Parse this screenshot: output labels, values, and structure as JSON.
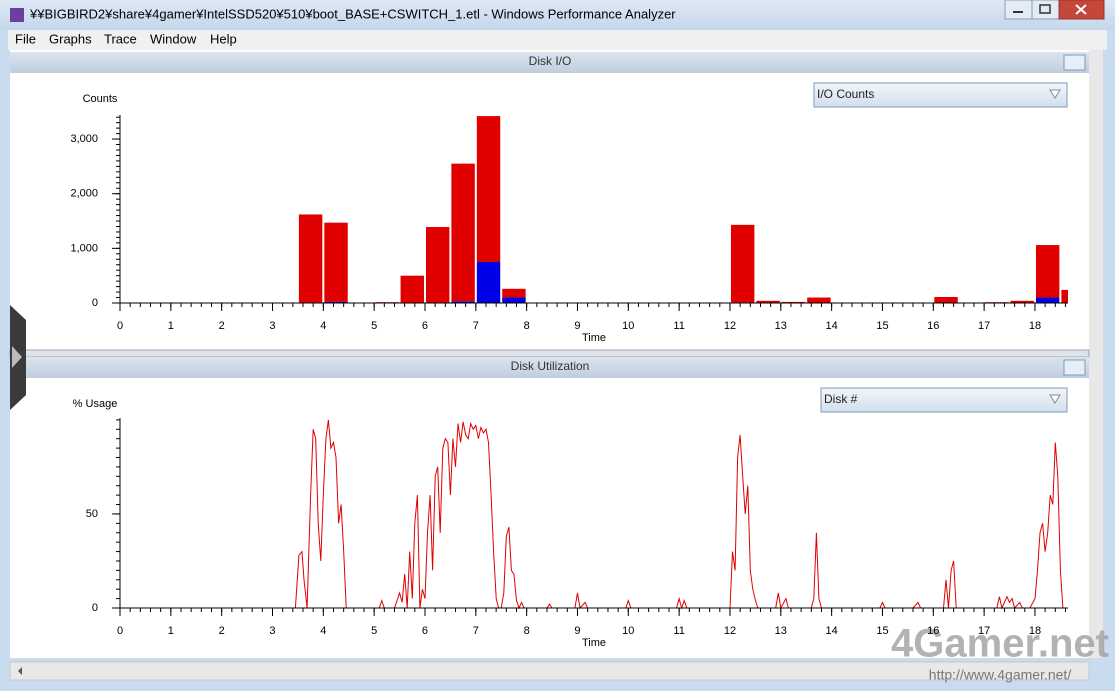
{
  "window": {
    "title": "¥¥BIGBIRD2¥share¥4gamer¥IntelSSD520¥510¥boot_BASE+CSWITCH_1.etl - Windows Performance Analyzer"
  },
  "menu": [
    "File",
    "Graphs",
    "Trace",
    "Window",
    "Help"
  ],
  "watermark": {
    "logo": "4Gamer.net",
    "url": "http://www.4gamer.net/"
  },
  "chart_data": [
    {
      "type": "histogram",
      "panel_title": "Disk I/O",
      "dropdown": "I/O Counts",
      "ylabel": "Counts",
      "xlabel": "Time",
      "bins": [
        0,
        0.5,
        1,
        1.5,
        2,
        2.5,
        3,
        3.5,
        4,
        4.5,
        5,
        5.5,
        6,
        6.5,
        7,
        7.5,
        8,
        8.5,
        9,
        9.5,
        10,
        10.5,
        11,
        11.5,
        12,
        12.5,
        13,
        13.5,
        14,
        14.5,
        15,
        15.5,
        16,
        16.5,
        17,
        17.5,
        18,
        18.5,
        19
      ],
      "series": [
        {
          "color": "#0000e6",
          "values": [
            0,
            0,
            0,
            0,
            0,
            0,
            0,
            10,
            20,
            0,
            0,
            0,
            0,
            30,
            750,
            100,
            0,
            0,
            0,
            0,
            0,
            0,
            0,
            0,
            10,
            0,
            0,
            0,
            0,
            0,
            0,
            0,
            0,
            0,
            0,
            0,
            100,
            0
          ]
        },
        {
          "color": "#e00000",
          "values": [
            0,
            0,
            0,
            0,
            0,
            0,
            0,
            1610,
            1450,
            0,
            15,
            500,
            1390,
            2520,
            2670,
            160,
            0,
            0,
            0,
            0,
            0,
            0,
            0,
            0,
            1420,
            40,
            20,
            100,
            0,
            0,
            0,
            0,
            110,
            0,
            15,
            40,
            960,
            240
          ]
        }
      ],
      "xlim": [
        0,
        18.65
      ],
      "xticks": [
        0,
        1,
        2,
        3,
        4,
        5,
        6,
        7,
        8,
        9,
        10,
        11,
        12,
        13,
        14,
        15,
        16,
        17,
        18
      ],
      "ylim": [
        0,
        3440
      ],
      "yticks": [
        0,
        {
          "value": 1000,
          "label": "1,000"
        },
        {
          "value": 2000,
          "label": "2,000"
        },
        {
          "value": 3000,
          "label": "3,000"
        }
      ]
    },
    {
      "type": "line",
      "panel_title": "Disk Utilization",
      "dropdown": "Disk #",
      "ylabel": "% Usage",
      "xlabel": "Time",
      "color": "#e00000",
      "x": [
        0,
        3.45,
        3.52,
        3.58,
        3.62,
        3.68,
        3.75,
        3.8,
        3.85,
        3.9,
        3.95,
        4.0,
        4.05,
        4.1,
        4.15,
        4.2,
        4.25,
        4.3,
        4.35,
        4.4,
        4.45,
        5.1,
        5.15,
        5.2,
        5.4,
        5.5,
        5.55,
        5.6,
        5.65,
        5.7,
        5.75,
        5.8,
        5.85,
        5.9,
        5.95,
        6.0,
        6.05,
        6.1,
        6.15,
        6.2,
        6.25,
        6.3,
        6.35,
        6.4,
        6.45,
        6.5,
        6.55,
        6.6,
        6.65,
        6.7,
        6.75,
        6.8,
        6.85,
        6.9,
        6.95,
        7.0,
        7.05,
        7.1,
        7.15,
        7.2,
        7.25,
        7.3,
        7.35,
        7.4,
        7.45,
        7.5,
        7.55,
        7.6,
        7.65,
        7.7,
        7.75,
        7.8,
        7.85,
        7.9,
        7.95,
        8.4,
        8.45,
        8.5,
        8.95,
        9.0,
        9.05,
        9.15,
        9.2,
        9.95,
        10.0,
        10.05,
        10.95,
        11.0,
        11.05,
        11.1,
        11.15,
        12.0,
        12.05,
        12.1,
        12.15,
        12.2,
        12.25,
        12.3,
        12.35,
        12.4,
        12.45,
        12.5,
        12.55,
        12.9,
        12.95,
        13.0,
        13.1,
        13.15,
        13.6,
        13.65,
        13.7,
        13.75,
        13.8,
        14.95,
        15.0,
        15.05,
        15.6,
        15.7,
        15.75,
        16.2,
        16.25,
        16.3,
        16.35,
        16.4,
        16.45,
        17.25,
        17.3,
        17.35,
        17.45,
        17.5,
        17.55,
        17.6,
        17.7,
        17.75,
        17.9,
        18.0,
        18.05,
        18.1,
        18.15,
        18.2,
        18.25,
        18.3,
        18.35,
        18.4,
        18.45,
        18.5,
        18.55,
        18.6
      ],
      "values": [
        0,
        0,
        28,
        30,
        15,
        0,
        60,
        95,
        90,
        45,
        25,
        60,
        90,
        100,
        85,
        88,
        80,
        45,
        55,
        30,
        0,
        0,
        4,
        0,
        0,
        8,
        3,
        18,
        0,
        30,
        5,
        45,
        60,
        0,
        10,
        5,
        40,
        60,
        20,
        70,
        75,
        40,
        85,
        90,
        88,
        60,
        90,
        75,
        98,
        88,
        99,
        92,
        90,
        98,
        95,
        97,
        90,
        96,
        93,
        95,
        88,
        60,
        30,
        5,
        0,
        0,
        8,
        38,
        43,
        20,
        18,
        4,
        0,
        3,
        0,
        0,
        2,
        0,
        0,
        8,
        0,
        3,
        0,
        0,
        4,
        0,
        0,
        5,
        0,
        4,
        0,
        0,
        30,
        20,
        80,
        92,
        70,
        50,
        65,
        20,
        10,
        4,
        0,
        0,
        8,
        0,
        5,
        0,
        0,
        5,
        40,
        5,
        0,
        0,
        3,
        0,
        0,
        3,
        0,
        0,
        15,
        0,
        20,
        25,
        0,
        0,
        6,
        0,
        6,
        3,
        5,
        0,
        3,
        0,
        0,
        5,
        20,
        40,
        45,
        30,
        40,
        60,
        55,
        88,
        70,
        20,
        0,
        0
      ],
      "xlim": [
        0,
        18.65
      ],
      "xticks": [
        0,
        1,
        2,
        3,
        4,
        5,
        6,
        7,
        8,
        9,
        10,
        11,
        12,
        13,
        14,
        15,
        16,
        17,
        18
      ],
      "ylim": [
        0,
        101
      ],
      "yticks": [
        0,
        50
      ]
    }
  ]
}
